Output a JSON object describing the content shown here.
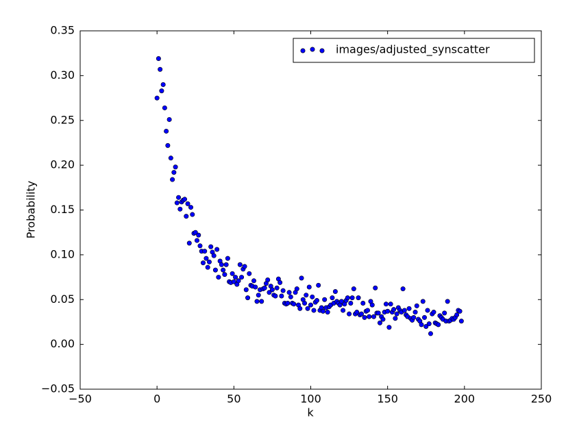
{
  "chart_data": {
    "type": "scatter",
    "x_label": "k",
    "y_label": "Probability",
    "xlim": [
      -50,
      250
    ],
    "ylim": [
      -0.05,
      0.35
    ],
    "xticks": [
      {
        "value": -50,
        "label": "−50"
      },
      0,
      50,
      100,
      150,
      200,
      250
    ],
    "yticks": [
      {
        "value": -0.05,
        "label": "−0.05"
      },
      {
        "value": 0,
        "label": "0.00"
      },
      0.05,
      {
        "value": 0.1,
        "label": "0.10"
      },
      0.15,
      {
        "value": 0.2,
        "label": "0.20"
      },
      0.25,
      {
        "value": 0.3,
        "label": "0.30"
      },
      0.35
    ],
    "legend": "upper right",
    "x": [
      0,
      1,
      2,
      3,
      4,
      5,
      6,
      7,
      8,
      9,
      10,
      11,
      12,
      13,
      14,
      15,
      16,
      17,
      18,
      19,
      20,
      21,
      22,
      23,
      24,
      25,
      26,
      27,
      28,
      29,
      30,
      31,
      32,
      33,
      34,
      35,
      36,
      37,
      38,
      39,
      40,
      41,
      42,
      43,
      44,
      45,
      46,
      47,
      48,
      49,
      50,
      51,
      52,
      53,
      54,
      55,
      56,
      57,
      58,
      59,
      60,
      61,
      62,
      63,
      64,
      65,
      66,
      67,
      68,
      69,
      70,
      71,
      72,
      73,
      74,
      75,
      76,
      77,
      78,
      79,
      80,
      81,
      82,
      83,
      84,
      85,
      86,
      87,
      88,
      89,
      90,
      91,
      92,
      93,
      94,
      95,
      96,
      97,
      98,
      99,
      100,
      101,
      102,
      103,
      104,
      105,
      106,
      107,
      108,
      109,
      110,
      111,
      112,
      113,
      114,
      115,
      116,
      117,
      118,
      119,
      120,
      121,
      122,
      123,
      124,
      125,
      126,
      127,
      128,
      129,
      130,
      131,
      132,
      133,
      134,
      135,
      136,
      137,
      138,
      139,
      140,
      141,
      142,
      143,
      144,
      145,
      146,
      147,
      148,
      149,
      150,
      151,
      152,
      153,
      154,
      155,
      156,
      157,
      158,
      159,
      160,
      161,
      162,
      163,
      164,
      165,
      166,
      167,
      168,
      169,
      170,
      171,
      172,
      173,
      174,
      175,
      176,
      177,
      178,
      179,
      180,
      181,
      182,
      183,
      184,
      185,
      186,
      187,
      188,
      189,
      190,
      191,
      192,
      193,
      194,
      195,
      196,
      197,
      198
    ],
    "series": [
      {
        "name": "images/adjusted_synscatter",
        "color": "#0000ff",
        "values": [
          0.275,
          0.319,
          0.307,
          0.283,
          0.29,
          0.264,
          0.238,
          0.222,
          0.251,
          0.208,
          0.184,
          0.192,
          0.198,
          0.158,
          0.164,
          0.151,
          0.159,
          0.161,
          0.162,
          0.143,
          0.157,
          0.113,
          0.153,
          0.145,
          0.124,
          0.125,
          0.116,
          0.122,
          0.11,
          0.104,
          0.091,
          0.104,
          0.096,
          0.086,
          0.092,
          0.109,
          0.103,
          0.099,
          0.083,
          0.106,
          0.075,
          0.093,
          0.089,
          0.083,
          0.078,
          0.089,
          0.096,
          0.07,
          0.069,
          0.079,
          0.07,
          0.075,
          0.067,
          0.071,
          0.089,
          0.075,
          0.084,
          0.087,
          0.061,
          0.052,
          0.079,
          0.066,
          0.065,
          0.071,
          0.064,
          0.048,
          0.055,
          0.061,
          0.048,
          0.062,
          0.063,
          0.068,
          0.072,
          0.058,
          0.065,
          0.061,
          0.055,
          0.054,
          0.063,
          0.073,
          0.069,
          0.054,
          0.06,
          0.046,
          0.045,
          0.046,
          0.058,
          0.053,
          0.046,
          0.045,
          0.058,
          0.062,
          0.044,
          0.04,
          0.074,
          0.05,
          0.046,
          0.055,
          0.04,
          0.064,
          0.044,
          0.053,
          0.038,
          0.047,
          0.049,
          0.066,
          0.038,
          0.041,
          0.037,
          0.05,
          0.041,
          0.036,
          0.042,
          0.044,
          0.052,
          0.046,
          0.059,
          0.048,
          0.046,
          0.044,
          0.048,
          0.038,
          0.045,
          0.049,
          0.052,
          0.034,
          0.046,
          0.052,
          0.062,
          0.034,
          0.036,
          0.052,
          0.033,
          0.034,
          0.046,
          0.03,
          0.037,
          0.038,
          0.031,
          0.048,
          0.044,
          0.031,
          0.063,
          0.035,
          0.035,
          0.024,
          0.031,
          0.028,
          0.036,
          0.045,
          0.037,
          0.019,
          0.045,
          0.036,
          0.039,
          0.029,
          0.034,
          0.041,
          0.038,
          0.036,
          0.062,
          0.038,
          0.033,
          0.031,
          0.04,
          0.029,
          0.027,
          0.03,
          0.036,
          0.043,
          0.028,
          0.026,
          0.022,
          0.048,
          0.03,
          0.02,
          0.038,
          0.023,
          0.012,
          0.034,
          0.036,
          0.024,
          0.023,
          0.022,
          0.032,
          0.03,
          0.028,
          0.035,
          0.026,
          0.048,
          0.026,
          0.027,
          0.029,
          0.028,
          0.03,
          0.033,
          0.038,
          0.037,
          0.026
        ]
      }
    ]
  }
}
